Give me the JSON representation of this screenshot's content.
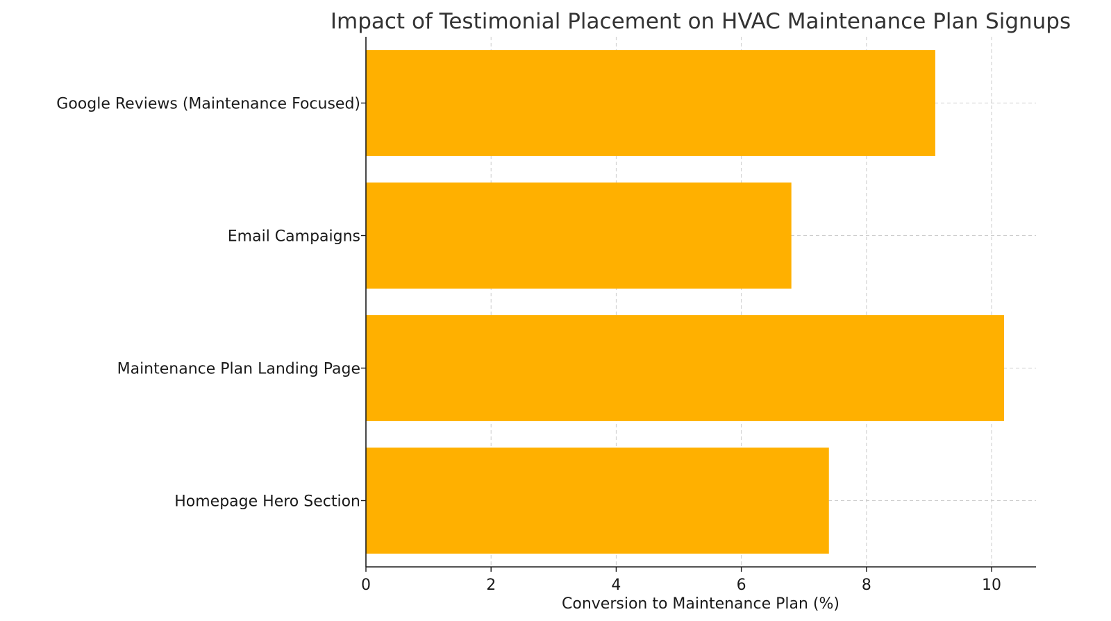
{
  "chart_data": {
    "type": "bar",
    "orientation": "horizontal",
    "title": "Impact of Testimonial Placement on HVAC Maintenance Plan Signups",
    "xlabel": "Conversion to Maintenance Plan (%)",
    "ylabel": "",
    "categories": [
      "Homepage Hero Section",
      "Maintenance Plan Landing Page",
      "Email Campaigns",
      "Google Reviews (Maintenance Focused)"
    ],
    "values": [
      7.4,
      10.2,
      6.8,
      9.1
    ],
    "xlim": [
      0,
      10.71
    ],
    "xticks": [
      0,
      2,
      4,
      6,
      8,
      10
    ],
    "grid": true,
    "bar_color": "#FFB000"
  }
}
